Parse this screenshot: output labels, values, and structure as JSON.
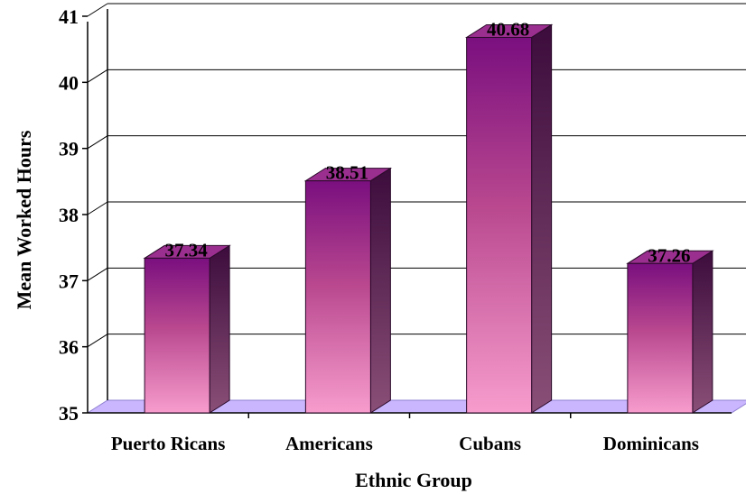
{
  "chart_data": {
    "type": "bar",
    "title": "",
    "xlabel": "Ethnic Group",
    "ylabel": "Mean Worked Hours",
    "categories": [
      "Puerto Ricans",
      "Americans",
      "Cubans",
      "Dominicans"
    ],
    "values": [
      37.34,
      38.51,
      40.68,
      37.26
    ],
    "value_labels": [
      "37.34",
      "38.51",
      "40.68",
      "37.26"
    ],
    "ylim": [
      35,
      41
    ],
    "yticks": [
      "35",
      "36",
      "37",
      "38",
      "39",
      "40",
      "41"
    ],
    "grid": true,
    "legend": "none",
    "colors": {
      "bar_top": "#7a0f7f",
      "bar_bottom": "#f79ccd",
      "bar_side_top": "#3c0c3c",
      "bar_side_bottom": "#8a4f77",
      "bar_cap": "#9b2f8f",
      "floor": "#c9b6ff",
      "gridline": "#000000"
    }
  }
}
